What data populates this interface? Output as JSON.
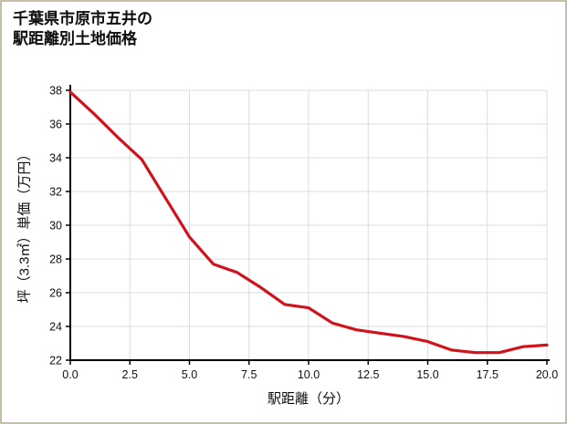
{
  "chart_data": {
    "type": "line",
    "title": "千葉県市原市五井の駅距離別土地価格",
    "title_lines": [
      "千葉県市原市五井の",
      "駅距離別土地価格"
    ],
    "xlabel": "駅距離（分）",
    "ylabel": "坪（3.3㎡）単価（万円）",
    "xlim": [
      0,
      20
    ],
    "ylim": [
      22,
      38
    ],
    "xticks": [
      0,
      2.5,
      5,
      7.5,
      10,
      12.5,
      15,
      17.5,
      20
    ],
    "xtick_labels": [
      "0.0",
      "2.5",
      "5.0",
      "7.5",
      "10.0",
      "12.5",
      "15.0",
      "17.5",
      "20.0"
    ],
    "yticks": [
      22,
      24,
      26,
      28,
      30,
      32,
      34,
      36,
      38
    ],
    "ytick_labels": [
      "22",
      "24",
      "26",
      "28",
      "30",
      "32",
      "34",
      "36",
      "38"
    ],
    "grid": true,
    "legend": false,
    "colors": {
      "line": "#d0121b",
      "grid": "#dcdcdc",
      "axis": "#000000",
      "page_border": "#c6bda9"
    },
    "x": [
      0,
      1,
      2,
      3,
      4,
      5,
      6,
      7,
      8,
      9,
      10,
      11,
      12,
      13,
      14,
      15,
      16,
      17,
      18,
      19,
      20
    ],
    "y": [
      37.9,
      36.6,
      35.2,
      33.9,
      31.6,
      29.3,
      27.7,
      27.2,
      26.3,
      25.3,
      25.1,
      24.2,
      23.8,
      23.6,
      23.4,
      23.1,
      22.6,
      22.45,
      22.45,
      22.8,
      22.9
    ]
  }
}
